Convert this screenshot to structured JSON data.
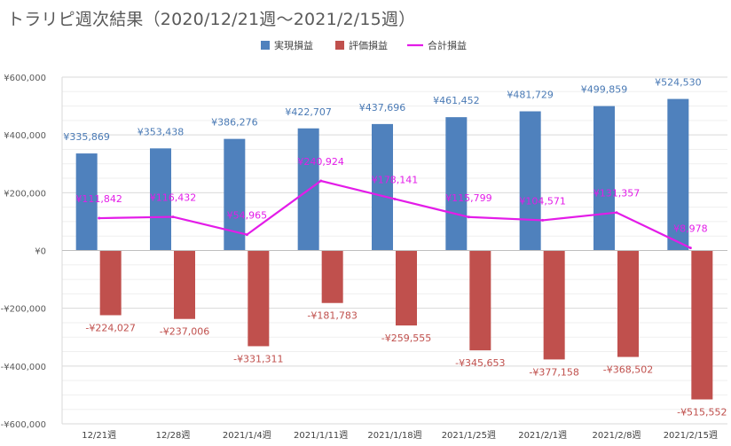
{
  "chart_data": {
    "type": "bar",
    "title": "トラリピ週次結果（2020/12/21週〜2021/2/15週）",
    "categories": [
      "12/21週",
      "12/28週",
      "2021/1/4週",
      "2021/1/11週",
      "2021/1/18週",
      "2021/1/25週",
      "2021/2/1週",
      "2021/2/8週",
      "2021/2/15週"
    ],
    "series": [
      {
        "name": "実現損益",
        "kind": "bar",
        "color": "#4f81bd",
        "values": [
          335869,
          353438,
          386276,
          422707,
          437696,
          461452,
          481729,
          499859,
          524530
        ],
        "labels": [
          "¥335,869",
          "¥353,438",
          "¥386,276",
          "¥422,707",
          "¥437,696",
          "¥461,452",
          "¥481,729",
          "¥499,859",
          "¥524,530"
        ]
      },
      {
        "name": "評価損益",
        "kind": "bar",
        "color": "#c0504d",
        "values": [
          -224027,
          -237006,
          -331311,
          -181783,
          -259555,
          -345653,
          -377158,
          -368502,
          -515552
        ],
        "labels": [
          "-¥224,027",
          "-¥237,006",
          "-¥331,311",
          "-¥181,783",
          "-¥259,555",
          "-¥345,653",
          "-¥377,158",
          "-¥368,502",
          "-¥515,552"
        ]
      },
      {
        "name": "合計損益",
        "kind": "line",
        "color": "#e31ce8",
        "values": [
          111842,
          116432,
          54965,
          240924,
          178141,
          115799,
          104571,
          131357,
          8978
        ],
        "labels": [
          "¥111,842",
          "¥116,432",
          "¥54,965",
          "¥240,924",
          "¥178,141",
          "¥115,799",
          "¥104,571",
          "¥131,357",
          "¥8,978"
        ]
      }
    ],
    "ylim": [
      -600000,
      600000
    ],
    "yticks": [
      600000,
      400000,
      200000,
      0,
      -200000,
      -400000,
      -600000
    ],
    "ytick_labels": [
      "¥600,000",
      "¥400,000",
      "¥200,000",
      "¥0",
      "-¥200,000",
      "-¥400,000",
      "-¥600,000"
    ],
    "grid": true,
    "legend_position": "top-center"
  }
}
